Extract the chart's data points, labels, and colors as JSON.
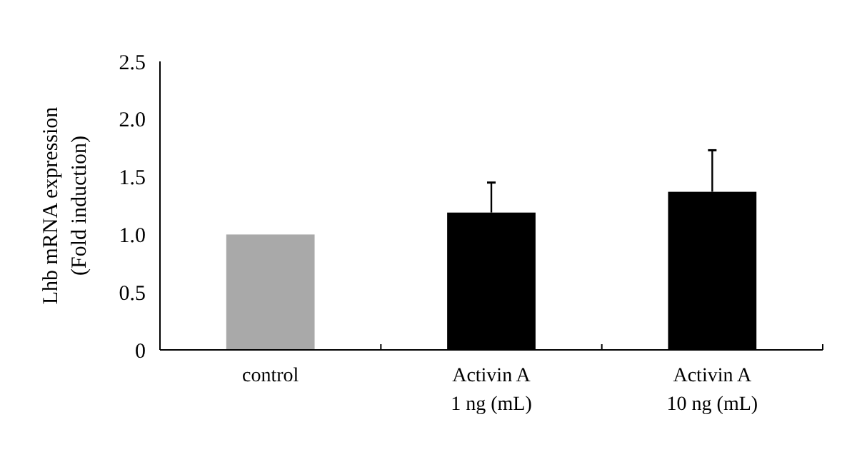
{
  "chart_data": {
    "type": "bar",
    "ylabel": "Lhb mRNA expression\n(Fold induction)",
    "categories": [
      "control",
      "Activin A\n1 ng (mL)",
      "Activin A\n10 ng (mL)"
    ],
    "values": [
      1.0,
      1.19,
      1.37
    ],
    "colors": [
      "#a9a9a9",
      "#000000",
      "#000000"
    ],
    "errors": [
      null,
      [
        1.19,
        1.45
      ],
      [
        1.37,
        1.73
      ]
    ],
    "ylim": [
      0,
      2.5
    ],
    "yticks": [
      {
        "value": 0,
        "label": "0"
      },
      {
        "value": 0.5,
        "label": "0.5"
      },
      {
        "value": 1,
        "label": "1.0"
      },
      {
        "value": 1.5,
        "label": "1.5"
      },
      {
        "value": 2,
        "label": "2.0"
      },
      {
        "value": 2.5,
        "label": "2.5"
      }
    ],
    "grid": false
  }
}
